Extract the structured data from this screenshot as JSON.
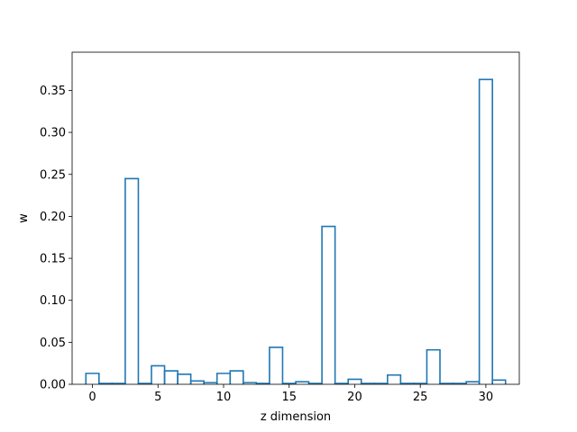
{
  "chart_data": {
    "type": "bar",
    "style": "step-outline",
    "x": [
      0,
      1,
      2,
      3,
      4,
      5,
      6,
      7,
      8,
      9,
      10,
      11,
      12,
      13,
      14,
      15,
      16,
      17,
      18,
      19,
      20,
      21,
      22,
      23,
      24,
      25,
      26,
      27,
      28,
      29,
      30,
      31
    ],
    "values": [
      0.013,
      0.001,
      0.001,
      0.245,
      0.001,
      0.022,
      0.016,
      0.012,
      0.004,
      0.002,
      0.013,
      0.016,
      0.002,
      0.001,
      0.044,
      0.001,
      0.003,
      0.001,
      0.188,
      0.001,
      0.006,
      0.001,
      0.001,
      0.011,
      0.001,
      0.001,
      0.041,
      0.001,
      0.001,
      0.003,
      0.363,
      0.005
    ],
    "xlabel": "z dimension",
    "ylabel": "w",
    "xlim": [
      -1.55,
      32.55
    ],
    "ylim": [
      0,
      0.3955
    ],
    "xticks": [
      0,
      5,
      10,
      15,
      20,
      25,
      30
    ],
    "yticks": [
      0.0,
      0.05,
      0.1,
      0.15,
      0.2,
      0.25,
      0.3,
      0.35
    ],
    "ytick_labels": [
      "0.00",
      "0.05",
      "0.10",
      "0.15",
      "0.20",
      "0.25",
      "0.30",
      "0.35"
    ],
    "xtick_labels": [
      "0",
      "5",
      "10",
      "15",
      "20",
      "25",
      "30"
    ],
    "grid": false,
    "legend": "none",
    "color": "#1f77b4"
  }
}
